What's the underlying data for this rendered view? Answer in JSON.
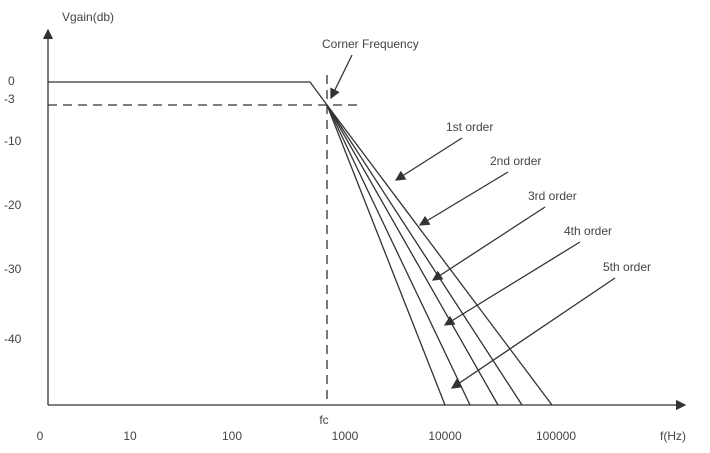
{
  "y_axis": {
    "label": "Vgain(db)",
    "ticks": [
      "0",
      "-3",
      "-10",
      "-20",
      "-30",
      "-40"
    ]
  },
  "x_axis": {
    "label": "f(Hz)",
    "ticks": [
      "0",
      "10",
      "100",
      "1000",
      "10000",
      "100000"
    ],
    "corner_label": "fc"
  },
  "annotations": {
    "corner": "Corner Frequency",
    "orders": [
      "1st order",
      "2nd order",
      "3rd order",
      "4th order",
      "5th order"
    ]
  }
}
